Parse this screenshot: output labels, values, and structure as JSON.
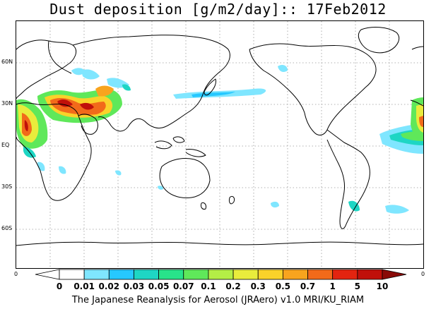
{
  "title": "Dust deposition [g/m2/day]:: 17Feb2012",
  "latitude_labels": [
    "60N",
    "30N",
    "EQ",
    "30S",
    "60S"
  ],
  "corner_labels": {
    "left": "0",
    "right": "0"
  },
  "colorbar": {
    "labels": [
      "0",
      "0.01",
      "0.02",
      "0.03",
      "0.05",
      "0.07",
      "0.1",
      "0.2",
      "0.3",
      "0.5",
      "0.7",
      "1",
      "5",
      "10"
    ],
    "colors": [
      "#ffffff",
      "#ffffff",
      "#7fe6ff",
      "#26c8ff",
      "#1ed6c4",
      "#28e38a",
      "#5fe85a",
      "#b4ee46",
      "#e9ec3c",
      "#fad22a",
      "#f8a41e",
      "#f26a1a",
      "#e32410",
      "#c0100a",
      "#8a0a08"
    ]
  },
  "footer": "The Japanese Reanalysis for Aerosol (JRAero) v1.0 MRI/KU_RIAM"
}
